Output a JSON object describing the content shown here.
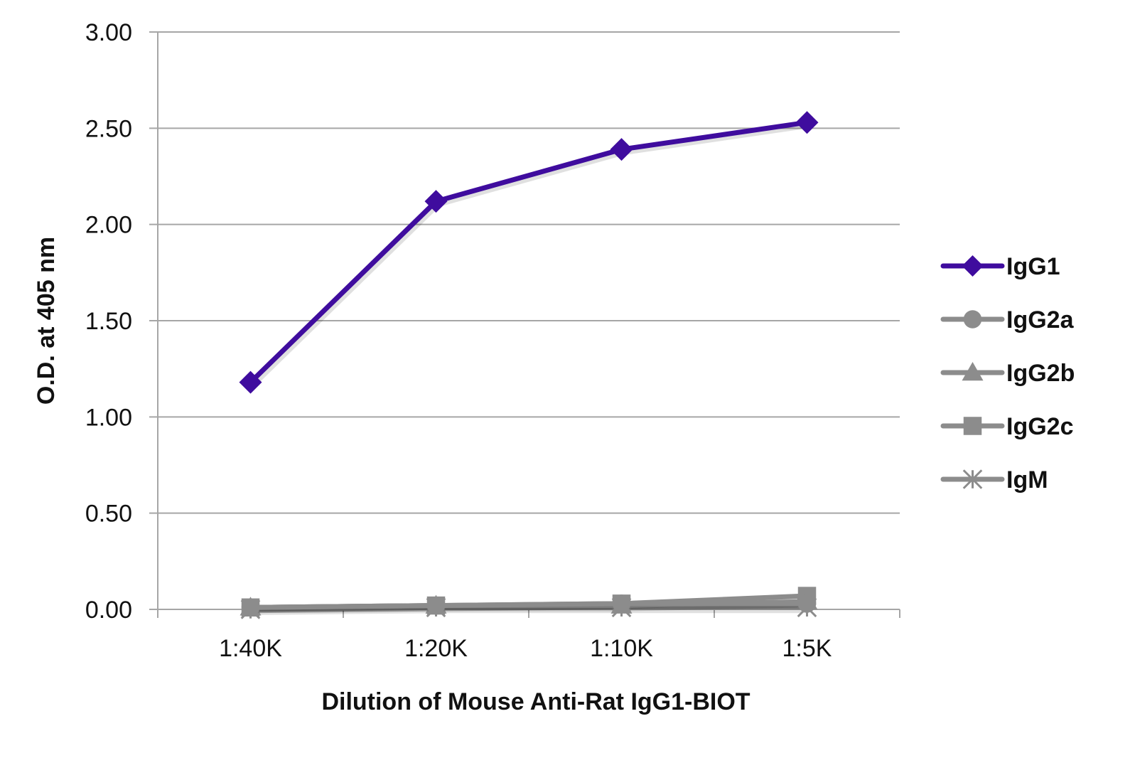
{
  "chart_data": {
    "type": "line",
    "title": "",
    "xlabel": "Dilution of Mouse Anti-Rat IgG1-BIOT",
    "ylabel": "O.D. at 405 nm",
    "categories": [
      "1:40K",
      "1:20K",
      "1:10K",
      "1:5K"
    ],
    "ylim": [
      0,
      3
    ],
    "yticks": [
      "0.00",
      "0.50",
      "1.00",
      "1.50",
      "2.00",
      "2.50",
      "3.00"
    ],
    "grid": "horizontal",
    "legend_position": "right",
    "series": [
      {
        "name": "IgG1",
        "values": [
          1.18,
          2.12,
          2.39,
          2.53
        ],
        "color": "#3f0c9e",
        "marker": "diamond"
      },
      {
        "name": "IgG2a",
        "values": [
          0.01,
          0.02,
          0.03,
          0.03
        ],
        "color": "#8c8c8c",
        "marker": "circle"
      },
      {
        "name": "IgG2b",
        "values": [
          0.01,
          0.02,
          0.02,
          0.04
        ],
        "color": "#8c8c8c",
        "marker": "triangle"
      },
      {
        "name": "IgG2c",
        "values": [
          0.01,
          0.02,
          0.03,
          0.07
        ],
        "color": "#8c8c8c",
        "marker": "square"
      },
      {
        "name": "IgM",
        "values": [
          0.0,
          0.01,
          0.01,
          0.01
        ],
        "color": "#8c8c8c",
        "marker": "asterisk"
      }
    ]
  }
}
